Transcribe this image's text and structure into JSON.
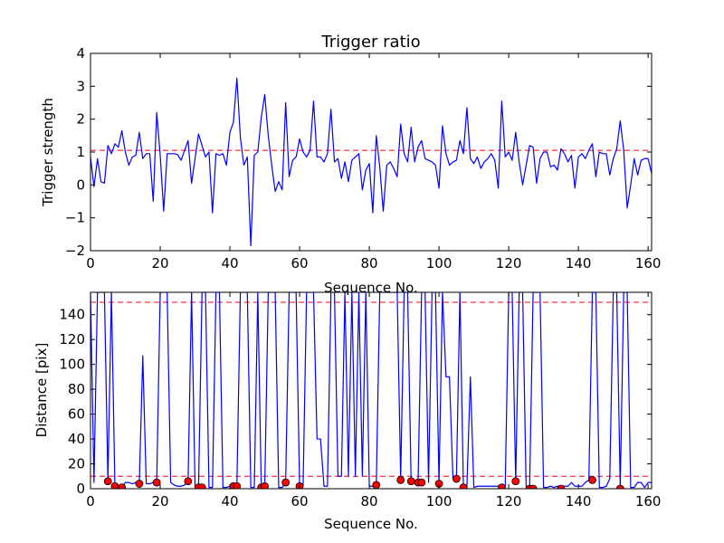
{
  "chart_data": [
    {
      "type": "line",
      "title": "Trigger ratio",
      "xlabel": "Sequence No.",
      "ylabel": "Trigger strength",
      "xlim": [
        0,
        161
      ],
      "ylim": [
        -2,
        4
      ],
      "xticks": [
        0,
        20,
        40,
        60,
        80,
        100,
        120,
        140,
        160
      ],
      "yticks": [
        -2,
        -1,
        0,
        1,
        2,
        3,
        4
      ],
      "yticklabels": [
        "−2",
        "−1",
        "0",
        "1",
        "2",
        "3",
        "4"
      ],
      "grid": false,
      "colors": {
        "line": "#0000ff",
        "threshold": "#ff0000"
      },
      "threshold": 1.05,
      "series": [
        {
          "style": "line",
          "x": [
            0,
            1,
            2,
            3,
            4,
            5,
            6,
            7,
            8,
            9,
            10,
            11,
            12,
            13,
            14,
            15,
            16,
            17,
            18,
            19,
            20,
            21,
            22,
            23,
            24,
            25,
            26,
            27,
            28,
            29,
            30,
            31,
            32,
            33,
            34,
            35,
            36,
            37,
            38,
            39,
            40,
            41,
            42,
            43,
            44,
            45,
            46,
            47,
            48,
            49,
            50,
            51,
            52,
            53,
            54,
            55,
            56,
            57,
            58,
            59,
            60,
            61,
            62,
            63,
            64,
            65,
            66,
            67,
            68,
            69,
            70,
            71,
            72,
            73,
            74,
            75,
            76,
            77,
            78,
            79,
            80,
            81,
            82,
            83,
            84,
            85,
            86,
            87,
            88,
            89,
            90,
            91,
            92,
            93,
            94,
            95,
            96,
            97,
            98,
            99,
            100,
            101,
            102,
            103,
            104,
            105,
            106,
            107,
            108,
            109,
            110,
            111,
            112,
            113,
            114,
            115,
            116,
            117,
            118,
            119,
            120,
            121,
            122,
            123,
            124,
            125,
            126,
            127,
            128,
            129,
            130,
            131,
            132,
            133,
            134,
            135,
            136,
            137,
            138,
            139,
            140,
            141,
            142,
            143,
            144,
            145,
            146,
            147,
            148,
            149,
            150,
            151,
            152,
            153,
            154,
            155,
            156,
            157,
            158,
            159,
            160,
            161
          ],
          "y": [
            0.85,
            -0.05,
            0.8,
            0.1,
            0.05,
            1.2,
            0.95,
            1.25,
            1.15,
            1.65,
            1.0,
            0.6,
            0.85,
            0.9,
            1.6,
            0.8,
            0.95,
            0.95,
            -0.5,
            2.2,
            0.9,
            -0.8,
            0.95,
            0.95,
            0.95,
            0.92,
            0.75,
            1.05,
            1.35,
            0.05,
            0.8,
            1.55,
            1.2,
            0.85,
            1.0,
            -0.85,
            0.95,
            0.9,
            0.95,
            0.6,
            1.6,
            1.9,
            3.25,
            1.45,
            0.6,
            0.85,
            -1.85,
            0.9,
            1.0,
            2.05,
            2.75,
            1.5,
            0.6,
            -0.2,
            0.1,
            -0.15,
            2.5,
            0.25,
            0.75,
            0.85,
            1.4,
            1.0,
            0.85,
            1.05,
            2.55,
            0.85,
            0.85,
            0.7,
            0.95,
            2.3,
            0.7,
            0.8,
            0.2,
            0.7,
            0.1,
            0.75,
            0.85,
            0.95,
            -0.15,
            0.45,
            0.65,
            -0.85,
            1.5,
            0.55,
            -0.8,
            0.6,
            0.7,
            0.5,
            0.25,
            1.85,
            0.95,
            0.7,
            1.75,
            0.7,
            1.15,
            1.35,
            0.8,
            0.75,
            0.7,
            0.6,
            -0.1,
            1.8,
            0.95,
            0.6,
            0.7,
            0.75,
            1.35,
            0.95,
            2.35,
            0.8,
            0.65,
            0.85,
            0.5,
            0.7,
            0.8,
            0.95,
            0.75,
            -0.1,
            2.55,
            0.85,
            1.0,
            0.75,
            1.6,
            0.7,
            0.0,
            0.6,
            1.2,
            1.15,
            0.05,
            0.8,
            1.0,
            1.0,
            0.55,
            0.6,
            0.45,
            1.1,
            0.95,
            0.7,
            0.9,
            -0.1,
            0.85,
            0.95,
            0.8,
            1.05,
            1.25,
            0.25,
            1.0,
            0.95,
            0.95,
            0.3,
            0.8,
            1.1,
            1.95,
            1.05,
            -0.7,
            0.0,
            0.8,
            0.3,
            0.75,
            0.8,
            0.8,
            0.35
          ]
        }
      ]
    },
    {
      "type": "line",
      "title": "",
      "xlabel": "Sequence No.",
      "ylabel": "Distance [pix]",
      "xlim": [
        0,
        161
      ],
      "ylim": [
        0,
        158
      ],
      "xticks": [
        0,
        20,
        40,
        60,
        80,
        100,
        120,
        140,
        160
      ],
      "yticks": [
        0,
        20,
        40,
        60,
        80,
        100,
        120,
        140
      ],
      "yticklabels": [
        "0",
        "20",
        "40",
        "60",
        "80",
        "100",
        "120",
        "140"
      ],
      "grid": false,
      "colors": {
        "line": "#0000ff",
        "marker_fill": "#ff0000",
        "marker_edge": "#000000",
        "threshold": "#ff0000"
      },
      "thresholds": [
        150,
        10
      ],
      "series": [
        {
          "style": "line",
          "x": [
            0,
            1,
            2,
            3,
            4,
            5,
            6,
            7,
            8,
            9,
            10,
            11,
            12,
            13,
            14,
            15,
            16,
            17,
            18,
            19,
            20,
            21,
            22,
            23,
            24,
            25,
            26,
            27,
            28,
            29,
            30,
            31,
            32,
            33,
            34,
            35,
            36,
            37,
            38,
            39,
            40,
            41,
            42,
            43,
            44,
            45,
            46,
            47,
            48,
            49,
            50,
            51,
            52,
            53,
            54,
            55,
            56,
            57,
            58,
            59,
            60,
            61,
            62,
            63,
            64,
            65,
            66,
            67,
            68,
            69,
            70,
            71,
            72,
            73,
            74,
            75,
            76,
            77,
            78,
            79,
            80,
            81,
            82,
            83,
            84,
            85,
            86,
            87,
            88,
            89,
            90,
            91,
            92,
            93,
            94,
            95,
            96,
            97,
            98,
            99,
            100,
            101,
            102,
            103,
            104,
            105,
            106,
            107,
            108,
            109,
            110,
            111,
            112,
            113,
            114,
            115,
            116,
            117,
            118,
            119,
            120,
            121,
            122,
            123,
            124,
            125,
            126,
            127,
            128,
            129,
            130,
            131,
            132,
            133,
            134,
            135,
            136,
            137,
            138,
            139,
            140,
            141,
            142,
            143,
            144,
            145,
            146,
            147,
            148,
            149,
            150,
            151,
            152,
            153,
            154,
            155,
            156,
            157,
            158,
            159,
            160,
            161
          ],
          "y": [
            158,
            5,
            158,
            158,
            158,
            6,
            158,
            2,
            1,
            1,
            5,
            5,
            4,
            5,
            4,
            107,
            4,
            4,
            5,
            5,
            158,
            158,
            158,
            5,
            3,
            2,
            2,
            3,
            6,
            158,
            1,
            1,
            158,
            158,
            1,
            1,
            158,
            158,
            1,
            1,
            2,
            2,
            2,
            158,
            158,
            158,
            1,
            1,
            158,
            1,
            2,
            158,
            158,
            158,
            1,
            1,
            5,
            158,
            158,
            158,
            2,
            2,
            158,
            158,
            158,
            40,
            40,
            2,
            2,
            158,
            158,
            10,
            10,
            158,
            10,
            158,
            10,
            158,
            10,
            158,
            2,
            2,
            2,
            158,
            158,
            158,
            158,
            158,
            158,
            8,
            158,
            158,
            6,
            5,
            5,
            158,
            158,
            5,
            158,
            158,
            4,
            158,
            90,
            90,
            8,
            8,
            158,
            1,
            1,
            90,
            1,
            2,
            2,
            2,
            2,
            2,
            2,
            2,
            1,
            1,
            158,
            158,
            5,
            158,
            158,
            1,
            1,
            158,
            158,
            158,
            1,
            1,
            2,
            1,
            2,
            2,
            2,
            2,
            5,
            2,
            2,
            2,
            5,
            7,
            158,
            158,
            1,
            1,
            2,
            8,
            158,
            158,
            1,
            158,
            158,
            1,
            1,
            5,
            5,
            1,
            5,
            5
          ]
        },
        {
          "style": "markers",
          "x": [
            5,
            7,
            9,
            14,
            19,
            28,
            31,
            32,
            41,
            42,
            49,
            50,
            56,
            60,
            82,
            89,
            92,
            94,
            95,
            100,
            105,
            107,
            118,
            122,
            126,
            127,
            135,
            144,
            152
          ],
          "y": [
            6,
            2,
            1,
            4,
            5,
            6,
            1,
            1,
            2,
            2,
            1,
            2,
            5,
            2,
            3,
            7,
            6,
            5,
            5,
            4,
            8,
            1,
            1,
            6,
            0,
            0,
            0,
            7,
            0
          ]
        }
      ]
    }
  ]
}
